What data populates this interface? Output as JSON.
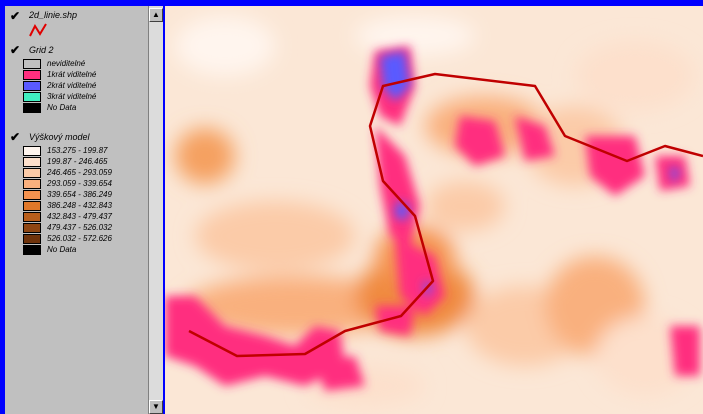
{
  "toc": {
    "layers": [
      {
        "title": "2d_linie.shp",
        "checked": true,
        "symbol_color": "#e00000"
      },
      {
        "title": "Grid 2",
        "checked": true,
        "items": [
          {
            "label": "neviditelné",
            "color": "#c0c0c0"
          },
          {
            "label": "1krát viditelné",
            "color": "#ff2f7f"
          },
          {
            "label": "2krát viditelné",
            "color": "#5a5aff"
          },
          {
            "label": "3krát viditelné",
            "color": "#40f0c0"
          },
          {
            "label": "No Data",
            "color": "#000000"
          }
        ]
      },
      {
        "title": "Výškový model",
        "checked": true,
        "items": [
          {
            "label": "153.275 - 199.87",
            "color": "#fff5ee"
          },
          {
            "label": "199.87 - 246.465",
            "color": "#fde0cc"
          },
          {
            "label": "246.465 - 293.059",
            "color": "#fbcba8"
          },
          {
            "label": "293.059 - 339.654",
            "color": "#f9b07e"
          },
          {
            "label": "339.654 - 386.249",
            "color": "#f59350"
          },
          {
            "label": "386.248 - 432.843",
            "color": "#e0782a"
          },
          {
            "label": "432.843 - 479.437",
            "color": "#b85e1c"
          },
          {
            "label": "479.437 - 526.032",
            "color": "#8e4512"
          },
          {
            "label": "526.032 - 572.626",
            "color": "#6e320a"
          },
          {
            "label": "No Data",
            "color": "#000000"
          }
        ]
      }
    ]
  },
  "map": {
    "background": "#fbe7d6",
    "visibility_color": "#ff2f7f",
    "visibility2_color": "#5a5aff",
    "line_color": "#c00000"
  }
}
